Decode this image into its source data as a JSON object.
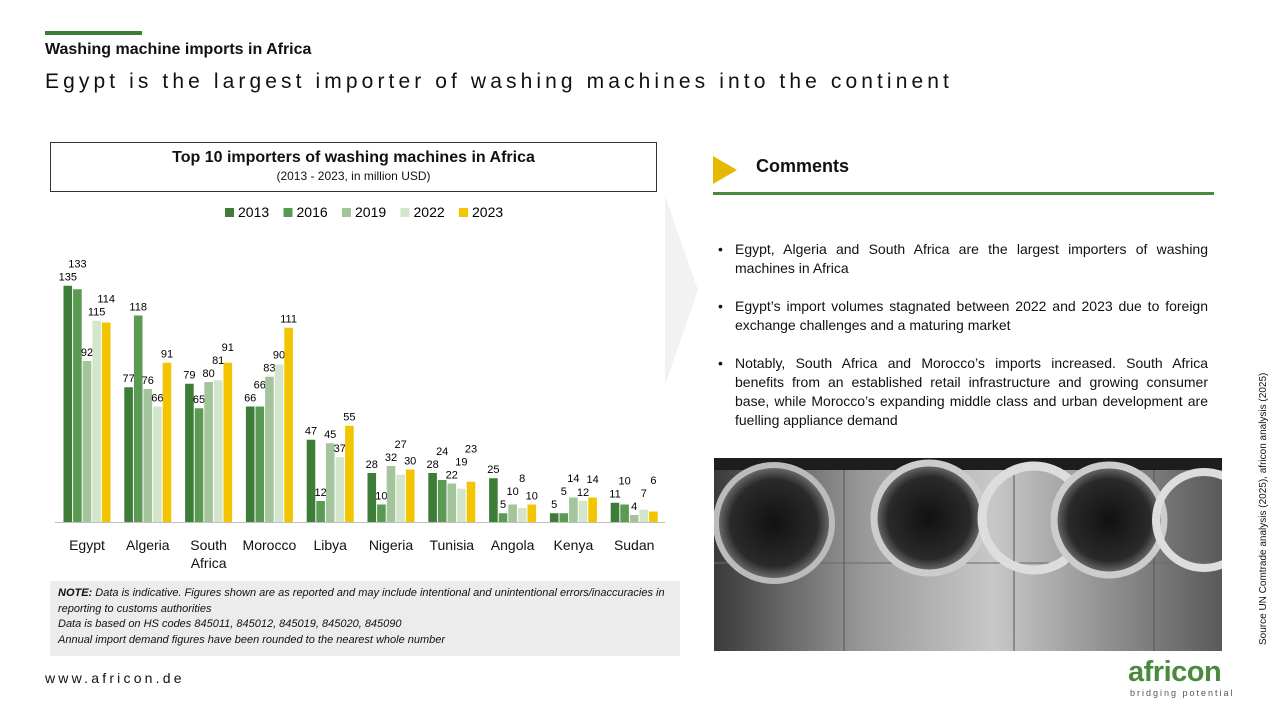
{
  "header": {
    "kicker": "Washing machine imports in Africa",
    "title": "Egypt is the largest importer of washing machines into the continent"
  },
  "chart_data": {
    "type": "bar",
    "title": "Top 10 importers of washing machines in Africa",
    "subtitle": "(2013 - 2023, in million USD)",
    "categories": [
      "Egypt",
      "Algeria",
      "South Africa",
      "Morocco",
      "Libya",
      "Nigeria",
      "Tunisia",
      "Angola",
      "Kenya",
      "Sudan"
    ],
    "series": [
      {
        "name": "2013",
        "color": "#3e7d37",
        "values": [
          135,
          77,
          79,
          66,
          47,
          28,
          28,
          25,
          5,
          11
        ]
      },
      {
        "name": "2016",
        "color": "#5b9a52",
        "values": [
          133,
          118,
          65,
          66,
          12,
          10,
          24,
          5,
          5,
          10
        ]
      },
      {
        "name": "2019",
        "color": "#a4c59b",
        "values": [
          92,
          76,
          80,
          83,
          45,
          32,
          22,
          10,
          14,
          4
        ]
      },
      {
        "name": "2022",
        "color": "#d3e6cb",
        "values": [
          115,
          66,
          81,
          90,
          37,
          27,
          19,
          8,
          12,
          7
        ]
      },
      {
        "name": "2023",
        "color": "#f2c500",
        "values": [
          114,
          91,
          91,
          111,
          55,
          30,
          23,
          10,
          14,
          6
        ]
      }
    ],
    "legend": "top"
  },
  "note": {
    "label": "NOTE:",
    "lines": [
      "Data is indicative. Figures shown are as reported and may include intentional and unintentional errors/inaccuracies in reporting to customs authorities",
      "Data is based on HS codes 845011, 845012, 845019, 845020, 845090",
      "Annual import demand figures have been rounded to the nearest whole number"
    ]
  },
  "comments": {
    "title": "Comments",
    "bullets": [
      "Egypt, Algeria and South Africa are the largest importers of washing machines in Africa",
      "Egypt’s import volumes stagnated between 2022 and 2023 due to foreign exchange challenges and a maturing market",
      "Notably, South Africa and Morocco’s imports increased. South Africa benefits from an established retail infrastructure and growing consumer base, while Morocco’s expanding middle class and urban development are fuelling appliance demand"
    ]
  },
  "footer": {
    "url": "www.africon.de",
    "source": "Source UN Comtrade analysis (2025), africon analysis (2025)",
    "logo": "africon",
    "tagline": "bridging potential"
  }
}
